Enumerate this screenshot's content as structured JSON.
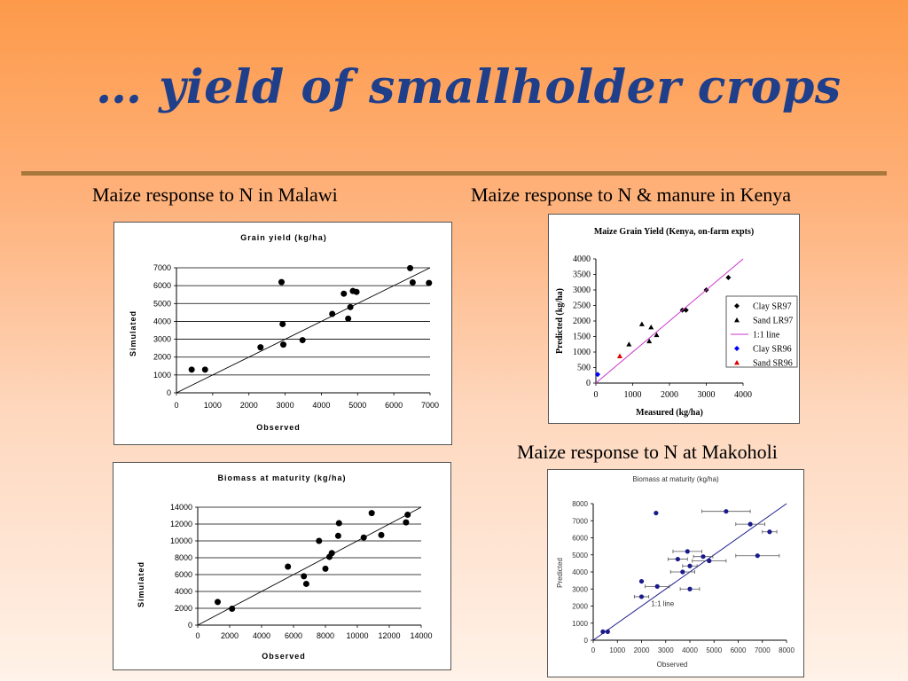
{
  "slide": {
    "title": "… yield of smallholder crops",
    "captions": {
      "malawi": "Maize response to N in Malawi",
      "kenya": "Maize response to N & manure in Kenya",
      "makoholi": "Maize response to N at Makoholi"
    }
  },
  "colors": {
    "title": "#1f3f8a",
    "rule": "#a8773c",
    "oneToOne": "#cc33cc",
    "blueSeries": "#0000ff",
    "redSeries": "#e00000",
    "makoholiPoints": "#1a1a8c"
  },
  "chart_data": [
    {
      "id": "malawi-grain",
      "type": "scatter",
      "title": "Grain yield (kg/ha)",
      "xlabel": "Observed",
      "ylabel": "Simulated",
      "xlim": [
        0,
        7000
      ],
      "ylim": [
        0,
        7000
      ],
      "xticks": [
        0,
        1000,
        2000,
        3000,
        4000,
        5000,
        6000,
        7000
      ],
      "yticks": [
        0,
        1000,
        2000,
        3000,
        4000,
        5000,
        6000,
        7000
      ],
      "grid": true,
      "one_to_one": true,
      "points": [
        [
          420,
          1300
        ],
        [
          790,
          1300
        ],
        [
          2320,
          2550
        ],
        [
          2900,
          6200
        ],
        [
          2930,
          3850
        ],
        [
          2950,
          2700
        ],
        [
          3480,
          2950
        ],
        [
          4300,
          4420
        ],
        [
          4620,
          5550
        ],
        [
          4740,
          4150
        ],
        [
          4800,
          4800
        ],
        [
          4870,
          5700
        ],
        [
          4970,
          5650
        ],
        [
          6450,
          6980
        ],
        [
          6520,
          6180
        ],
        [
          6970,
          6150
        ]
      ]
    },
    {
      "id": "malawi-biomass",
      "type": "scatter",
      "title": "Biomass at maturity (kg/ha)",
      "xlabel": "Observed",
      "ylabel": "Simulated",
      "xlim": [
        0,
        14000
      ],
      "ylim": [
        0,
        14000
      ],
      "xticks": [
        0,
        2000,
        4000,
        6000,
        8000,
        10000,
        12000,
        14000
      ],
      "yticks": [
        0,
        2000,
        4000,
        6000,
        8000,
        10000,
        12000,
        14000
      ],
      "grid": true,
      "one_to_one": true,
      "points": [
        [
          1250,
          2750
        ],
        [
          2150,
          1950
        ],
        [
          5650,
          6950
        ],
        [
          6650,
          5800
        ],
        [
          6800,
          4900
        ],
        [
          7600,
          10000
        ],
        [
          8000,
          6700
        ],
        [
          8250,
          8100
        ],
        [
          8400,
          8550
        ],
        [
          8800,
          10600
        ],
        [
          8850,
          12100
        ],
        [
          10400,
          10400
        ],
        [
          10900,
          13300
        ],
        [
          11500,
          10700
        ],
        [
          13050,
          12200
        ],
        [
          13150,
          13100
        ]
      ]
    },
    {
      "id": "kenya-grain",
      "type": "scatter",
      "title": "Maize Grain Yield (Kenya, on-farm expts)",
      "xlabel": "Measured (kg/ha)",
      "ylabel": "Predicted (kg/ha)",
      "xlim": [
        0,
        4000
      ],
      "ylim": [
        0,
        4000
      ],
      "xticks": [
        0,
        1000,
        2000,
        3000,
        4000
      ],
      "yticks": [
        0,
        500,
        1000,
        1500,
        2000,
        2500,
        3000,
        3500,
        4000
      ],
      "grid": false,
      "legend_position": "right",
      "series": [
        {
          "name": "Clay SR97",
          "marker": "diamond",
          "color": "#000000",
          "points": [
            [
              2350,
              2350
            ],
            [
              2450,
              2350
            ],
            [
              3000,
              3000
            ],
            [
              3600,
              3400
            ]
          ]
        },
        {
          "name": "Sand LR97",
          "marker": "triangle",
          "color": "#000000",
          "points": [
            [
              900,
              1250
            ],
            [
              1250,
              1900
            ],
            [
              1450,
              1350
            ],
            [
              1500,
              1800
            ],
            [
              1650,
              1550
            ]
          ]
        },
        {
          "name": "1:1 line",
          "marker": "line",
          "color": "#cc33cc",
          "points": [
            [
              0,
              0
            ],
            [
              4000,
              4000
            ]
          ]
        },
        {
          "name": "Clay SR96",
          "marker": "diamond",
          "color": "#0000ff",
          "points": [
            [
              50,
              280
            ]
          ]
        },
        {
          "name": "Sand SR96",
          "marker": "triangle",
          "color": "#e00000",
          "points": [
            [
              650,
              870
            ]
          ]
        }
      ]
    },
    {
      "id": "makoholi-biomass",
      "type": "scatter",
      "title": "Biomass at maturity (kg/ha)",
      "xlabel": "Observed",
      "ylabel": "Predicted",
      "xlim": [
        0,
        8000
      ],
      "ylim": [
        0,
        8000
      ],
      "xticks": [
        0,
        1000,
        2000,
        3000,
        4000,
        5000,
        6000,
        7000,
        8000
      ],
      "yticks": [
        0,
        1000,
        2000,
        3000,
        4000,
        5000,
        6000,
        7000,
        8000
      ],
      "grid": false,
      "one_to_one": true,
      "annotation": "1:1 line",
      "points": [
        {
          "x": 400,
          "y": 500,
          "err": 0
        },
        {
          "x": 600,
          "y": 500,
          "err": 0
        },
        {
          "x": 2000,
          "y": 2550,
          "err": 300
        },
        {
          "x": 2000,
          "y": 3450,
          "err": 0
        },
        {
          "x": 2600,
          "y": 7450,
          "err": 0
        },
        {
          "x": 2650,
          "y": 3150,
          "err": 500
        },
        {
          "x": 3500,
          "y": 4750,
          "err": 400
        },
        {
          "x": 3700,
          "y": 4000,
          "err": 500
        },
        {
          "x": 3900,
          "y": 5200,
          "err": 600
        },
        {
          "x": 4000,
          "y": 4350,
          "err": 300
        },
        {
          "x": 4000,
          "y": 3000,
          "err": 400
        },
        {
          "x": 4550,
          "y": 4900,
          "err": 400
        },
        {
          "x": 4800,
          "y": 4650,
          "err": 700
        },
        {
          "x": 5500,
          "y": 7550,
          "err": 1000
        },
        {
          "x": 6500,
          "y": 6800,
          "err": 600
        },
        {
          "x": 6800,
          "y": 4950,
          "err": 900
        },
        {
          "x": 7300,
          "y": 6350,
          "err": 300
        }
      ]
    }
  ]
}
